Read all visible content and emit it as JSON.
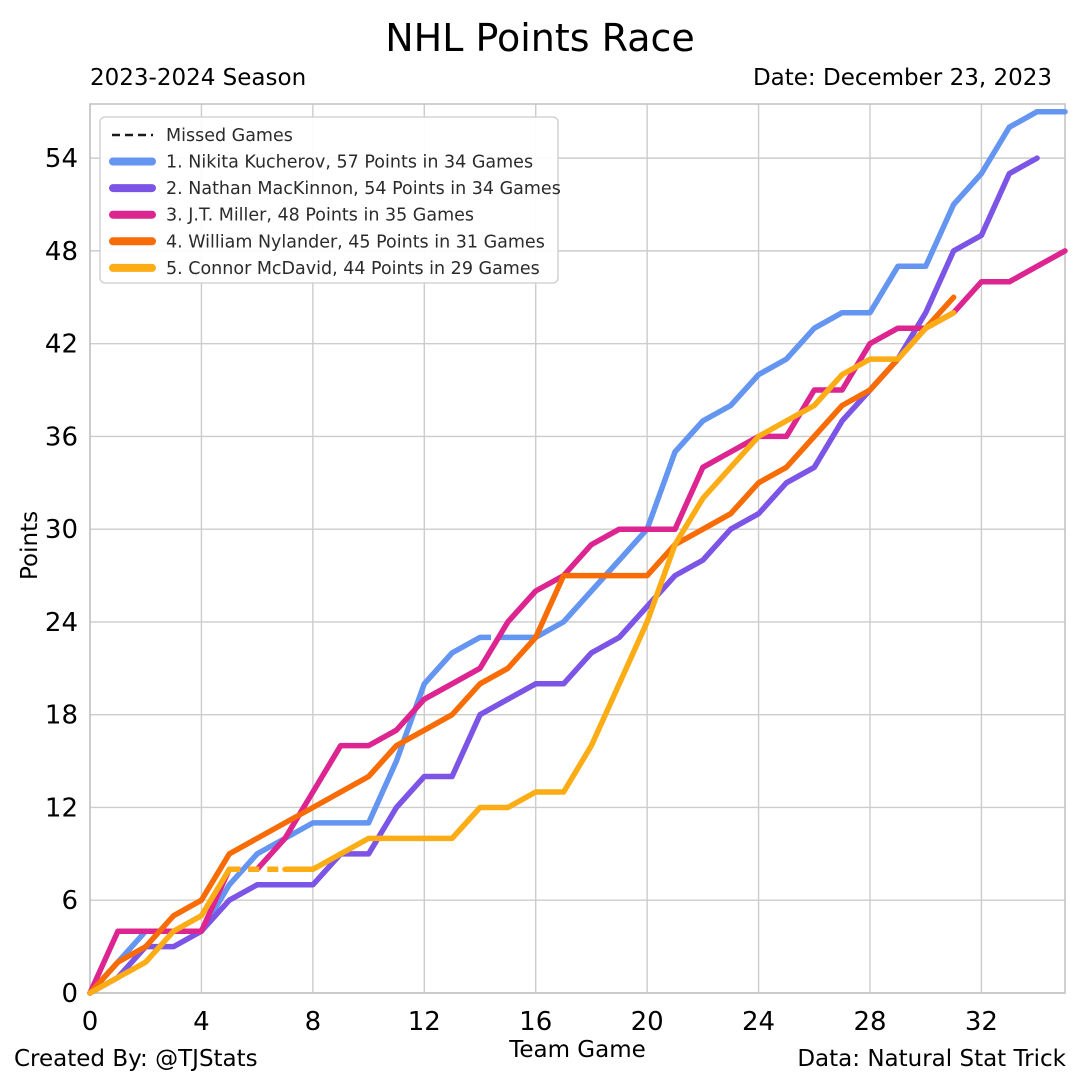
{
  "header": {
    "title": "NHL Points Race",
    "season": "2023-2024 Season",
    "date": "Date: December 23, 2023"
  },
  "footer": {
    "credit": "Created By: @TJStats",
    "source": "Data: Natural Stat Trick"
  },
  "axes": {
    "x_label": "Team Game",
    "y_label": "Points"
  },
  "style": {
    "grid_color": "#cccccc",
    "spine_color": "#c4c4c4",
    "text_color": "#000000",
    "legend_border": "#cccccc",
    "legend_bg": "#ffffff",
    "missed_dash_color": "#1a1a1a",
    "line_width": 5.5
  },
  "chart_data": {
    "type": "line",
    "title": "NHL Points Race",
    "subtitle": "2023-2024 Season",
    "date_label": "Date: December 23, 2023",
    "xlabel": "Team Game",
    "ylabel": "Points",
    "xlim": [
      0,
      35
    ],
    "ylim": [
      0,
      57.5
    ],
    "xticks": [
      0,
      4,
      8,
      12,
      16,
      20,
      24,
      28,
      32
    ],
    "yticks": [
      0,
      6,
      12,
      18,
      24,
      30,
      36,
      42,
      48,
      54
    ],
    "grid": true,
    "legend_position": "upper left",
    "missed_games_label": "Missed Games",
    "series": [
      {
        "id": "kucherov",
        "rank": 1,
        "player": "Nikita Kucherov",
        "points": 57,
        "games_played": 34,
        "label": "1. Nikita Kucherov, 57 Points in 34 Games",
        "color": "#6495F0",
        "values": [
          0,
          2,
          4,
          4,
          4,
          7,
          9,
          10,
          11,
          11,
          11,
          15,
          20,
          22,
          23,
          23,
          23,
          24,
          26,
          28,
          30,
          35,
          37,
          38,
          40,
          41,
          43,
          44,
          44,
          47,
          47,
          51,
          53,
          56,
          57,
          57
        ],
        "missed_segments": [
          [
            14,
            15
          ]
        ]
      },
      {
        "id": "mackinnon",
        "rank": 2,
        "player": "Nathan MacKinnon",
        "points": 54,
        "games_played": 34,
        "label": "2. Nathan MacKinnon, 54 Points in 34 Games",
        "color": "#7C55E6",
        "values": [
          0,
          1,
          3,
          3,
          4,
          6,
          7,
          7,
          7,
          9,
          9,
          12,
          14,
          14,
          18,
          19,
          20,
          20,
          22,
          23,
          25,
          27,
          28,
          30,
          31,
          33,
          34,
          37,
          39,
          41,
          44,
          48,
          49,
          53,
          54
        ],
        "missed_segments": []
      },
      {
        "id": "miller",
        "rank": 3,
        "player": "J.T. Miller",
        "points": 48,
        "games_played": 35,
        "label": "3. J.T. Miller, 48 Points in 35 Games",
        "color": "#DC2590",
        "values": [
          0,
          4,
          4,
          4,
          4,
          8,
          8,
          10,
          13,
          16,
          16,
          17,
          19,
          20,
          21,
          24,
          26,
          27,
          29,
          30,
          30,
          30,
          34,
          35,
          36,
          36,
          39,
          39,
          42,
          43,
          43,
          44,
          46,
          46,
          47,
          48
        ],
        "missed_segments": [
          [
            5,
            6
          ]
        ]
      },
      {
        "id": "nylander",
        "rank": 4,
        "player": "William Nylander",
        "points": 45,
        "games_played": 31,
        "label": "4. William Nylander, 45 Points in 31 Games",
        "color": "#F76C05",
        "values": [
          0,
          2,
          3,
          5,
          6,
          9,
          10,
          11,
          12,
          13,
          14,
          16,
          17,
          18,
          20,
          21,
          23,
          27,
          27,
          27,
          27,
          29,
          30,
          31,
          33,
          34,
          36,
          38,
          39,
          41,
          43,
          45
        ],
        "missed_segments": []
      },
      {
        "id": "mcdavid",
        "rank": 5,
        "player": "Connor McDavid",
        "points": 44,
        "games_played": 29,
        "label": "5. Connor McDavid, 44 Points in 29 Games",
        "color": "#FCAC15",
        "values": [
          0,
          1,
          2,
          4,
          5,
          8,
          8,
          8,
          8,
          9,
          10,
          10,
          10,
          10,
          12,
          12,
          13,
          13,
          16,
          20,
          24,
          29,
          32,
          34,
          36,
          37,
          38,
          40,
          41,
          41,
          43,
          44
        ],
        "missed_segments": [
          [
            5,
            7
          ]
        ]
      }
    ]
  }
}
